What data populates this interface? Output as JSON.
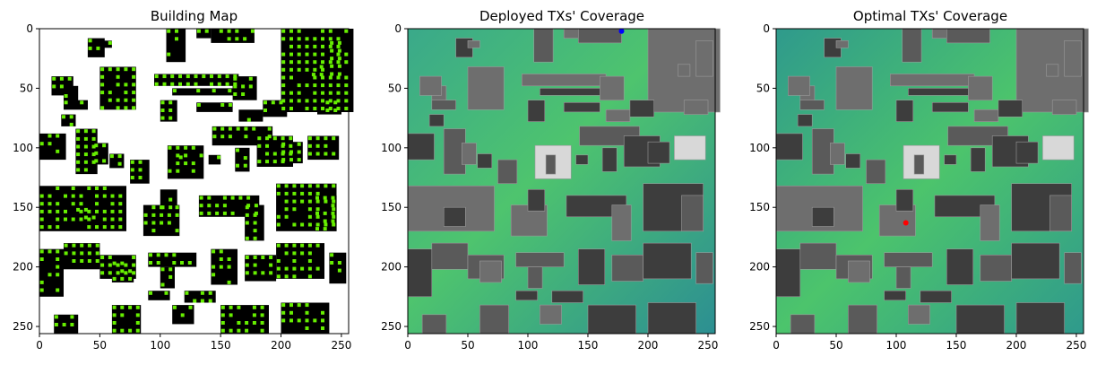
{
  "figure": {
    "panels": [
      {
        "title": "Building Map"
      },
      {
        "title": "Deployed TXs' Coverage"
      },
      {
        "title": "Optimal TXs' Coverage"
      }
    ]
  },
  "chart_data": [
    {
      "type": "heatmap",
      "title": "Building Map",
      "xlabel": "",
      "ylabel": "",
      "xlim": [
        0,
        255
      ],
      "ylim": [
        255,
        0
      ],
      "xticks": [
        0,
        50,
        100,
        150,
        200,
        250
      ],
      "yticks": [
        0,
        50,
        100,
        150,
        200,
        250
      ],
      "grid": false,
      "colors": {
        "background": "#ffffff",
        "building": "#000000",
        "candidate_point": "#66ee00"
      }
    },
    {
      "type": "heatmap",
      "title": "Deployed TXs' Coverage",
      "xlabel": "",
      "ylabel": "",
      "xlim": [
        0,
        255
      ],
      "ylim": [
        255,
        0
      ],
      "xticks": [
        0,
        50,
        100,
        150,
        200,
        250
      ],
      "yticks": [
        0,
        50,
        100,
        150,
        200,
        250
      ],
      "grid": false,
      "colors": {
        "coverage_high": "#4ec46e",
        "coverage_low": "#2a8f90",
        "building": "#555555",
        "tx_marker": "#0000ff"
      },
      "tx_points": [
        {
          "x": 178,
          "y": 2
        }
      ]
    },
    {
      "type": "heatmap",
      "title": "Optimal TXs' Coverage",
      "xlabel": "",
      "ylabel": "",
      "xlim": [
        0,
        255
      ],
      "ylim": [
        255,
        0
      ],
      "xticks": [
        0,
        50,
        100,
        150,
        200,
        250
      ],
      "yticks": [
        0,
        50,
        100,
        150,
        200,
        250
      ],
      "grid": false,
      "colors": {
        "coverage_high": "#4ec46e",
        "coverage_low": "#2a8f90",
        "building": "#555555",
        "tx_marker": "#ff0000"
      },
      "tx_points": [
        {
          "x": 108,
          "y": 163
        }
      ]
    }
  ]
}
